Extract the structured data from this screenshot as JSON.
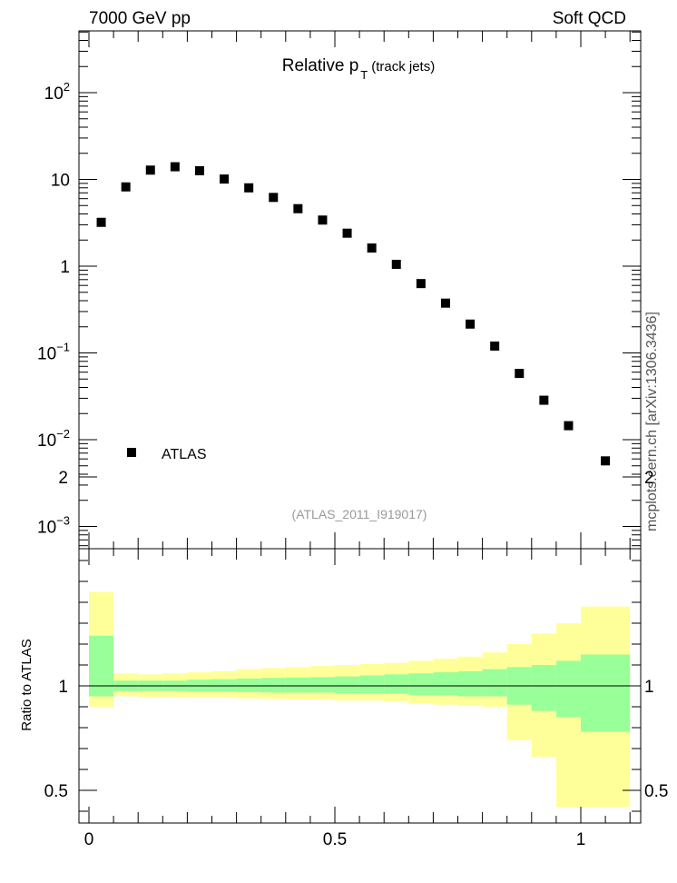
{
  "header": {
    "left": "7000 GeV pp",
    "right": "Soft QCD"
  },
  "side_label": "mcplots.cern.ch [arXiv:1306.3436]",
  "chart_data": [
    {
      "type": "scatter",
      "title_main": "Relative p",
      "title_sub": "T",
      "title_suffix": "(track jets)",
      "yscale": "log",
      "ylim": [
        0.0006,
        500
      ],
      "xlim": [
        -0.02,
        1.12
      ],
      "x": [
        0.025,
        0.075,
        0.125,
        0.175,
        0.225,
        0.275,
        0.325,
        0.375,
        0.425,
        0.475,
        0.525,
        0.575,
        0.625,
        0.675,
        0.725,
        0.775,
        0.825,
        0.875,
        0.925,
        0.975,
        1.05
      ],
      "series": [
        {
          "name": "ATLAS",
          "values": [
            3.2,
            8.2,
            12.8,
            14.0,
            12.6,
            10.1,
            8.0,
            6.2,
            4.6,
            3.4,
            2.4,
            1.62,
            1.05,
            0.63,
            0.375,
            0.215,
            0.12,
            0.058,
            0.0285,
            0.0145,
            0.0057
          ]
        }
      ],
      "y_ticks": [
        {
          "value": 0.001,
          "mant": "10",
          "exp": "−3"
        },
        {
          "value": 0.01,
          "mant": "10",
          "exp": "−2"
        },
        {
          "value": 0.1,
          "mant": "10",
          "exp": "−1"
        },
        {
          "value": 1,
          "mant": "1",
          "exp": ""
        },
        {
          "value": 10,
          "mant": "10",
          "exp": ""
        },
        {
          "value": 100,
          "mant": "10",
          "exp": "2"
        }
      ],
      "legend": {
        "label": "ATLAS",
        "position": "lower-left"
      },
      "annotation": "(ATLAS_2011_I919017)",
      "marker_color": "#000000"
    },
    {
      "type": "area",
      "ylabel": "Ratio to ATLAS",
      "ylim": [
        0.33,
        2.33
      ],
      "xlim": [
        -0.02,
        1.12
      ],
      "y_tick_labels": [
        "0.5",
        "1",
        "2"
      ],
      "y_tick_values": [
        0.5,
        1,
        2
      ],
      "x_tick_labels": [
        "0",
        "0.5",
        "1"
      ],
      "x_tick_values": [
        0,
        0.5,
        1
      ],
      "reference_line": 1,
      "bins": [
        0,
        0.05,
        0.1,
        0.15,
        0.2,
        0.25,
        0.3,
        0.35,
        0.4,
        0.45,
        0.5,
        0.55,
        0.6,
        0.65,
        0.7,
        0.75,
        0.8,
        0.85,
        0.9,
        0.95,
        1.0,
        1.1
      ],
      "bands": [
        {
          "name": "stat",
          "color": "#99ff99",
          "lo": [
            0.95,
            0.975,
            0.975,
            0.975,
            0.972,
            0.972,
            0.97,
            0.968,
            0.968,
            0.968,
            0.965,
            0.965,
            0.962,
            0.955,
            0.955,
            0.95,
            0.95,
            0.91,
            0.88,
            0.85,
            0.78
          ],
          "hi": [
            1.24,
            1.025,
            1.025,
            1.025,
            1.03,
            1.032,
            1.035,
            1.038,
            1.04,
            1.042,
            1.045,
            1.05,
            1.055,
            1.06,
            1.065,
            1.07,
            1.08,
            1.09,
            1.1,
            1.12,
            1.15
          ]
        },
        {
          "name": "total",
          "color": "#ffff99",
          "lo": [
            0.9,
            0.95,
            0.945,
            0.945,
            0.945,
            0.945,
            0.94,
            0.938,
            0.935,
            0.935,
            0.93,
            0.93,
            0.925,
            0.915,
            0.91,
            0.905,
            0.9,
            0.74,
            0.66,
            0.42,
            0.42
          ],
          "hi": [
            1.45,
            1.06,
            1.055,
            1.06,
            1.065,
            1.07,
            1.08,
            1.085,
            1.09,
            1.095,
            1.1,
            1.105,
            1.11,
            1.12,
            1.13,
            1.14,
            1.16,
            1.2,
            1.25,
            1.3,
            1.38
          ]
        }
      ]
    }
  ]
}
